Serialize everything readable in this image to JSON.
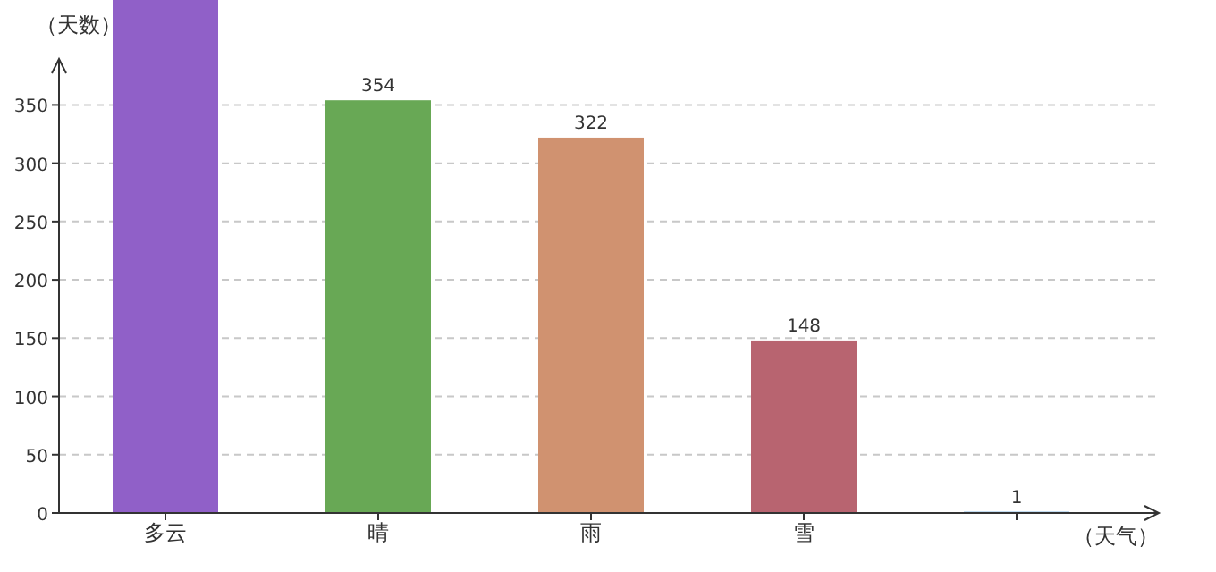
{
  "chart_data": {
    "type": "bar",
    "xlabel": "（天气）",
    "ylabel": "（天数）",
    "categories": [
      "多云",
      "晴",
      "雨",
      "雪",
      null
    ],
    "values": [
      440,
      354,
      322,
      148,
      1
    ],
    "colors": [
      "#9060c8",
      "#68a855",
      "#d09270",
      "#b86470",
      "#3a8ed0"
    ],
    "value_labels": [
      null,
      "354",
      "322",
      "148",
      "1"
    ],
    "ylim": [
      0,
      440
    ],
    "yticks": [
      0,
      50,
      100,
      150,
      200,
      250,
      300,
      350
    ],
    "grid": "y"
  }
}
